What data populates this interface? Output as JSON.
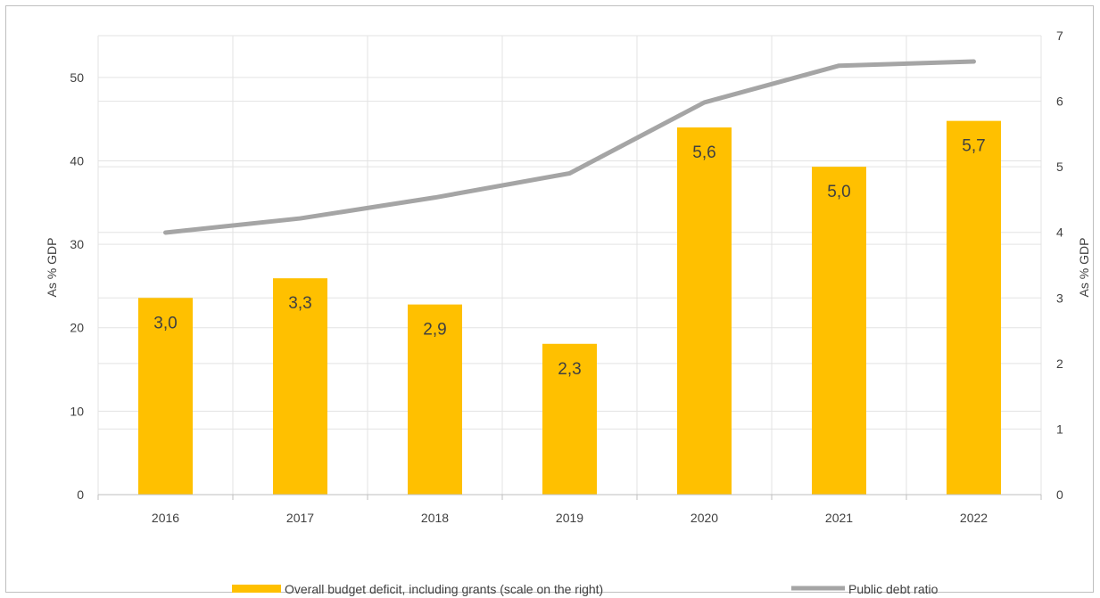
{
  "chart_data": {
    "type": "bar",
    "categories": [
      "2016",
      "2017",
      "2018",
      "2019",
      "2020",
      "2021",
      "2022"
    ],
    "series": [
      {
        "name": "Overall budget deficit, including grants (scale on the right)",
        "type": "bar",
        "axis": "right",
        "color": "#ffc000",
        "values": [
          3.0,
          3.3,
          2.9,
          2.3,
          5.6,
          5.0,
          5.7
        ],
        "data_labels": [
          "3,0",
          "3,3",
          "2,9",
          "2,3",
          "5,6",
          "5,0",
          "5,7"
        ]
      },
      {
        "name": "Public debt ratio",
        "type": "line",
        "axis": "left",
        "color": "#a5a5a5",
        "values": [
          31.4,
          33.1,
          35.6,
          38.5,
          47.0,
          51.4,
          51.9
        ]
      }
    ],
    "y_left": {
      "label": "As % GDP",
      "ylim": [
        0,
        55
      ],
      "ticks": [
        "0",
        "10",
        "20",
        "30",
        "40",
        "50"
      ],
      "tick_values": [
        0,
        10,
        20,
        30,
        40,
        50
      ]
    },
    "y_right": {
      "label": "As % GDP",
      "ylim": [
        0,
        7
      ],
      "ticks": [
        "0",
        "1",
        "2",
        "3",
        "4",
        "5",
        "6",
        "7"
      ],
      "tick_values": [
        0,
        1,
        2,
        3,
        4,
        5,
        6,
        7
      ]
    },
    "grid": true,
    "legend": "bottom",
    "colors": {
      "grid": "#e3e3e3",
      "axis": "#bfbfbf",
      "text": "#404040"
    }
  }
}
